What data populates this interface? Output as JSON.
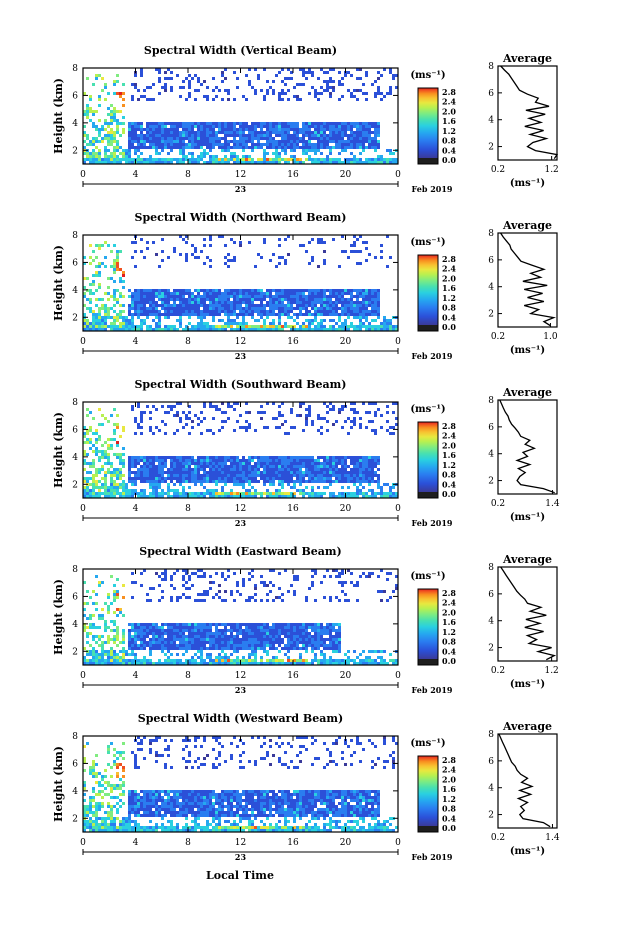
{
  "figure": {
    "xlabel": "Local Time",
    "date_label": "Feb 2019",
    "day_label": "23",
    "colorbar_unit": "(ms⁻¹)",
    "average_title": "Average",
    "average_unit": "(ms⁻¹)"
  },
  "colormap": [
    "#1e1e1e",
    "#3a3a9a",
    "#2b50d8",
    "#2a7df0",
    "#25a8f0",
    "#2ad0e0",
    "#48e0b0",
    "#80ec80",
    "#b8f050",
    "#e8e840",
    "#f8c030",
    "#f89020",
    "#f05020",
    "#e02020"
  ],
  "chart_data": [
    {
      "type": "heatmap",
      "title": "Spectral Width (Vertical Beam)",
      "ylabel": "Height (km)",
      "x_ticks": [
        "0",
        "4",
        "8",
        "12",
        "16",
        "20",
        "0"
      ],
      "y_ticks": [
        "2",
        "4",
        "6",
        "8"
      ],
      "xlim": [
        0,
        24
      ],
      "ylim": [
        1,
        8
      ],
      "colorbar_ticks": [
        "2.8",
        "2.4",
        "2.0",
        "1.6",
        "1.2",
        "0.8",
        "0.4",
        "0.0"
      ],
      "colorbar_range": [
        0,
        2.8
      ],
      "average_profile": {
        "x_ticks": [
          "0.2",
          "1.2"
        ],
        "xlim": [
          0.2,
          1.3
        ],
        "ylim": [
          1,
          8
        ],
        "y_ticks": [
          "2",
          "4",
          "6",
          "8"
        ],
        "height": [
          1.1,
          1.4,
          1.7,
          2.0,
          2.3,
          2.6,
          2.9,
          3.2,
          3.5,
          3.8,
          4.1,
          4.4,
          4.7,
          5.0,
          5.3,
          5.6,
          5.9,
          6.2,
          6.5,
          6.8,
          7.1,
          7.4,
          7.7,
          8.0
        ],
        "width": [
          1.25,
          1.3,
          0.9,
          0.75,
          0.85,
          1.1,
          0.8,
          1.05,
          0.7,
          1.0,
          0.78,
          1.08,
          0.72,
          1.15,
          0.9,
          0.95,
          0.75,
          0.6,
          0.55,
          0.5,
          0.45,
          0.4,
          0.32,
          0.25
        ]
      }
    },
    {
      "type": "heatmap",
      "title": "Spectral Width (Northward Beam)",
      "ylabel": "Height (km)",
      "x_ticks": [
        "0",
        "4",
        "8",
        "12",
        "16",
        "20",
        "0"
      ],
      "y_ticks": [
        "2",
        "4",
        "6",
        "8"
      ],
      "xlim": [
        0,
        24
      ],
      "ylim": [
        1,
        8
      ],
      "colorbar_ticks": [
        "2.8",
        "2.4",
        "2.0",
        "1.6",
        "1.2",
        "0.8",
        "0.4",
        "0.0"
      ],
      "colorbar_range": [
        0,
        2.8
      ],
      "average_profile": {
        "x_ticks": [
          "0.2",
          "1.0"
        ],
        "xlim": [
          0.2,
          1.1
        ],
        "ylim": [
          1,
          8
        ],
        "y_ticks": [
          "2",
          "4",
          "6",
          "8"
        ],
        "height": [
          1.1,
          1.4,
          1.7,
          2.0,
          2.3,
          2.6,
          2.9,
          3.2,
          3.5,
          3.8,
          4.1,
          4.4,
          4.7,
          5.0,
          5.3,
          5.6,
          5.9,
          6.2,
          6.5,
          6.8,
          7.1,
          7.4,
          7.7,
          8.0
        ],
        "width": [
          1.0,
          0.9,
          1.05,
          0.7,
          0.82,
          0.6,
          0.9,
          0.65,
          0.88,
          0.6,
          0.95,
          0.58,
          0.85,
          0.7,
          0.9,
          0.72,
          0.55,
          0.5,
          0.45,
          0.4,
          0.38,
          0.33,
          0.28,
          0.24
        ]
      }
    },
    {
      "type": "heatmap",
      "title": "Spectral Width (Southward Beam)",
      "ylabel": "Height (km)",
      "x_ticks": [
        "0",
        "4",
        "8",
        "12",
        "16",
        "20",
        "0"
      ],
      "y_ticks": [
        "2",
        "4",
        "6",
        "8"
      ],
      "xlim": [
        0,
        24
      ],
      "ylim": [
        1,
        8
      ],
      "colorbar_ticks": [
        "2.8",
        "2.4",
        "2.0",
        "1.6",
        "1.2",
        "0.8",
        "0.4",
        "0.0"
      ],
      "colorbar_range": [
        0,
        2.8
      ],
      "average_profile": {
        "x_ticks": [
          "0.2",
          "1.4"
        ],
        "xlim": [
          0.2,
          1.5
        ],
        "ylim": [
          1,
          8
        ],
        "y_ticks": [
          "2",
          "4",
          "6",
          "8"
        ],
        "height": [
          1.1,
          1.4,
          1.7,
          2.0,
          2.3,
          2.6,
          2.9,
          3.2,
          3.5,
          3.8,
          4.1,
          4.4,
          4.7,
          5.0,
          5.3,
          5.6,
          5.9,
          6.2,
          6.5,
          6.8,
          7.1,
          7.4,
          7.7,
          8.0
        ],
        "width": [
          1.45,
          1.2,
          0.7,
          0.62,
          0.68,
          0.8,
          0.65,
          0.9,
          0.62,
          0.85,
          0.75,
          1.0,
          0.8,
          0.9,
          0.7,
          0.65,
          0.58,
          0.5,
          0.45,
          0.42,
          0.36,
          0.32,
          0.28,
          0.24
        ]
      }
    },
    {
      "type": "heatmap",
      "title": "Spectral Width (Eastward Beam)",
      "ylabel": "Height (km)",
      "x_ticks": [
        "0",
        "4",
        "8",
        "12",
        "16",
        "20",
        "0"
      ],
      "y_ticks": [
        "2",
        "4",
        "6",
        "8"
      ],
      "xlim": [
        0,
        24
      ],
      "ylim": [
        1,
        8
      ],
      "colorbar_ticks": [
        "2.8",
        "2.4",
        "2.0",
        "1.6",
        "1.2",
        "0.8",
        "0.4",
        "0.0"
      ],
      "colorbar_range": [
        0,
        2.8
      ],
      "average_profile": {
        "x_ticks": [
          "0.2",
          "1.2"
        ],
        "xlim": [
          0.2,
          1.3
        ],
        "ylim": [
          1,
          8
        ],
        "y_ticks": [
          "2",
          "4",
          "6",
          "8"
        ],
        "height": [
          1.1,
          1.4,
          1.7,
          2.0,
          2.3,
          2.6,
          2.9,
          3.2,
          3.5,
          3.8,
          4.1,
          4.4,
          4.7,
          5.0,
          5.3,
          5.6,
          5.9,
          6.2,
          6.5,
          6.8,
          7.1,
          7.4,
          7.7,
          8.0
        ],
        "width": [
          1.1,
          1.25,
          0.95,
          1.2,
          0.78,
          0.92,
          0.75,
          1.05,
          0.7,
          0.98,
          0.72,
          1.1,
          0.8,
          1.0,
          0.75,
          0.7,
          0.62,
          0.55,
          0.5,
          0.45,
          0.4,
          0.35,
          0.3,
          0.25
        ]
      }
    },
    {
      "type": "heatmap",
      "title": "Spectral Width (Westward Beam)",
      "ylabel": "Height (km)",
      "x_ticks": [
        "0",
        "4",
        "8",
        "12",
        "16",
        "20",
        "0"
      ],
      "y_ticks": [
        "2",
        "4",
        "6",
        "8"
      ],
      "xlim": [
        0,
        24
      ],
      "ylim": [
        1,
        8
      ],
      "colorbar_ticks": [
        "2.8",
        "2.4",
        "2.0",
        "1.6",
        "1.2",
        "0.8",
        "0.4",
        "0.0"
      ],
      "colorbar_range": [
        0,
        2.8
      ],
      "average_profile": {
        "x_ticks": [
          "0.2",
          "1.4"
        ],
        "xlim": [
          0.2,
          1.5
        ],
        "ylim": [
          1,
          8
        ],
        "y_ticks": [
          "2",
          "4",
          "6",
          "8"
        ],
        "height": [
          1.1,
          1.4,
          1.7,
          2.0,
          2.3,
          2.6,
          2.9,
          3.2,
          3.5,
          3.8,
          4.1,
          4.4,
          4.7,
          5.0,
          5.3,
          5.6,
          5.9,
          6.2,
          6.5,
          6.8,
          7.1,
          7.4,
          7.7,
          8.0
        ],
        "width": [
          1.35,
          1.2,
          0.75,
          0.68,
          0.78,
          0.7,
          0.85,
          0.65,
          0.92,
          0.68,
          0.95,
          0.72,
          0.85,
          0.7,
          0.62,
          0.58,
          0.5,
          0.46,
          0.42,
          0.38,
          0.34,
          0.3,
          0.26,
          0.22
        ]
      }
    }
  ]
}
